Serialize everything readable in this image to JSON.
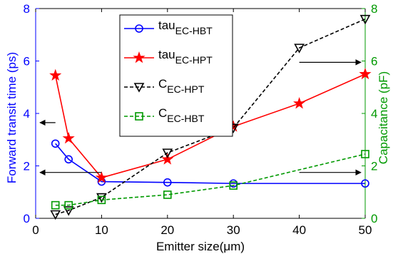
{
  "chart_data": {
    "type": "line",
    "xlabel": "Emitter size(μm)",
    "ylabel_left": "Forward transit time (ps)",
    "ylabel_right": "Capacitance (pF)",
    "xlim": [
      0,
      50
    ],
    "ylim_left": [
      0,
      8
    ],
    "ylim_right": [
      0,
      8
    ],
    "xticks": [
      "0",
      "10",
      "20",
      "30",
      "40",
      "50"
    ],
    "yticks_left": [
      "0",
      "2",
      "4",
      "6",
      "8"
    ],
    "yticks_right": [
      "0",
      "2",
      "4",
      "6",
      "8"
    ],
    "grid": false,
    "legend_placement": "top-center",
    "colors": {
      "left_axis": "#0000ff",
      "right_axis": "#009900"
    },
    "series": [
      {
        "name": "tau",
        "name_sub": "EC-HBT",
        "axis": "left",
        "color": "#0000ff",
        "line": "solid",
        "marker": "circle",
        "x": [
          3,
          5,
          10,
          20,
          30,
          50
        ],
        "values": [
          2.85,
          2.25,
          1.4,
          1.37,
          1.33,
          1.33
        ]
      },
      {
        "name": "tau",
        "name_sub": "EC-HPT",
        "axis": "left",
        "color": "#ff0000",
        "line": "solid",
        "marker": "star",
        "x": [
          3,
          5,
          10,
          20,
          30,
          40,
          50
        ],
        "values": [
          5.45,
          3.05,
          1.55,
          2.25,
          3.5,
          4.38,
          5.5
        ]
      },
      {
        "name": "C",
        "name_sub": "EC-HPT",
        "axis": "right",
        "color": "#000000",
        "line": "dashed",
        "marker": "triangle-down",
        "x": [
          3,
          5,
          10,
          20,
          30,
          40,
          50
        ],
        "values": [
          0.15,
          0.3,
          0.8,
          2.5,
          3.45,
          6.5,
          7.6
        ]
      },
      {
        "name": "C",
        "name_sub": "EC-HBT",
        "axis": "right",
        "color": "#009900",
        "line": "dashed",
        "marker": "square",
        "x": [
          3,
          5,
          10,
          20,
          30,
          50
        ],
        "values": [
          0.5,
          0.5,
          0.7,
          0.9,
          1.25,
          2.45
        ]
      }
    ],
    "annotations": [
      {
        "kind": "arrow",
        "direction": "left",
        "axis": "left",
        "x_from": 3,
        "x_to": 0,
        "y": 3.65
      },
      {
        "kind": "arrow",
        "direction": "left",
        "axis": "left",
        "x_from": 10,
        "x_to": 0,
        "y": 1.75
      },
      {
        "kind": "arrow",
        "direction": "right",
        "axis": "right",
        "x_from": 40,
        "x_to": 50,
        "y": 5.95
      },
      {
        "kind": "arrow",
        "direction": "right",
        "axis": "right",
        "x_from": 40,
        "x_to": 50,
        "y": 1.75
      }
    ]
  }
}
